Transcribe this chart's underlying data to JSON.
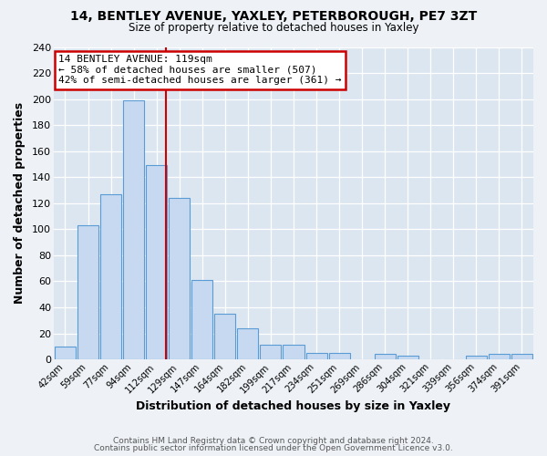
{
  "title": "14, BENTLEY AVENUE, YAXLEY, PETERBOROUGH, PE7 3ZT",
  "subtitle": "Size of property relative to detached houses in Yaxley",
  "xlabel": "Distribution of detached houses by size in Yaxley",
  "ylabel": "Number of detached properties",
  "bin_labels": [
    "42sqm",
    "59sqm",
    "77sqm",
    "94sqm",
    "112sqm",
    "129sqm",
    "147sqm",
    "164sqm",
    "182sqm",
    "199sqm",
    "217sqm",
    "234sqm",
    "251sqm",
    "269sqm",
    "286sqm",
    "304sqm",
    "321sqm",
    "339sqm",
    "356sqm",
    "374sqm",
    "391sqm"
  ],
  "bar_heights": [
    10,
    103,
    127,
    199,
    149,
    124,
    61,
    35,
    24,
    11,
    11,
    5,
    5,
    0,
    4,
    3,
    0,
    0,
    3,
    4,
    4
  ],
  "bar_color": "#c6d9f0",
  "bar_edge_color": "#5b9bd5",
  "red_line_color": "#cc0000",
  "red_line_bin_index": 4,
  "annotation_title": "14 BENTLEY AVENUE: 119sqm",
  "annotation_line1": "← 58% of detached houses are smaller (507)",
  "annotation_line2": "42% of semi-detached houses are larger (361) →",
  "annotation_box_facecolor": "#ffffff",
  "annotation_box_edgecolor": "#cc0000",
  "ylim_max": 240,
  "yticks": [
    0,
    20,
    40,
    60,
    80,
    100,
    120,
    140,
    160,
    180,
    200,
    220,
    240
  ],
  "axes_bg_color": "#dce6f1",
  "fig_bg_color": "#eef2f7",
  "grid_color": "#ffffff",
  "footer1": "Contains HM Land Registry data © Crown copyright and database right 2024.",
  "footer2": "Contains public sector information licensed under the Open Government Licence v3.0."
}
